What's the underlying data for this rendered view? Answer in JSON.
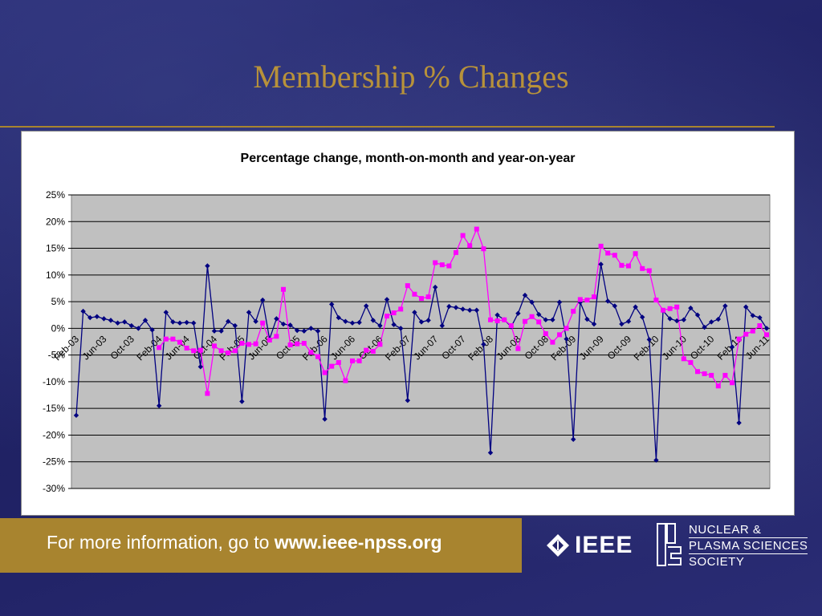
{
  "slide": {
    "title": "Membership % Changes"
  },
  "footer": {
    "text_prefix": "For more information, go to ",
    "url": "www.ieee-npss.org",
    "ieee_logo": "IEEE",
    "npss_lines": [
      "NUCLEAR &",
      "PLASMA SCIENCES",
      "SOCIETY"
    ]
  },
  "colors": {
    "title": "#b8923a",
    "accent_band": "#a8842f",
    "plot_area": "#c0c0c0",
    "mom_series": "#000080",
    "yoy_series": "#ff00ff"
  },
  "chart_data": {
    "type": "line",
    "title": "Percentage change, month-on-month and year-on-year",
    "xlabel": "",
    "ylabel": "",
    "ylim": [
      -30,
      25
    ],
    "y_ticks": [
      25,
      20,
      15,
      10,
      5,
      0,
      -5,
      -10,
      -15,
      -20,
      -25,
      -30
    ],
    "y_tick_labels": [
      "25%",
      "20%",
      "15%",
      "10%",
      "5%",
      "0%",
      "-5%",
      "-10%",
      "-15%",
      "-20%",
      "-25%",
      "-30%"
    ],
    "grid": true,
    "legend": "none",
    "x_start": "Feb-03",
    "x_tick_labels": [
      "Feb-03",
      "Jun-03",
      "Oct-03",
      "Feb-04",
      "Jun-04",
      "Oct-04",
      "Feb-05",
      "Jun-05",
      "Oct-05",
      "Feb-06",
      "Jun-06",
      "Oct-06",
      "Feb-07",
      "Jun-07",
      "Oct-07",
      "Feb-08",
      "Jun-08",
      "Oct-08",
      "Feb-09",
      "Jun-09",
      "Oct-09",
      "Feb-10",
      "Jun-10",
      "Oct-10",
      "Feb-11",
      "Jun-11"
    ],
    "series": [
      {
        "values": [
          -16.3,
          3.2,
          2,
          2.2,
          1.8,
          1.5,
          1.0,
          1.2,
          0.5,
          0,
          1.5,
          -0.3,
          -14.5,
          3,
          1.2,
          1,
          1.1,
          1,
          -7.2,
          11.7,
          -0.5,
          -0.5,
          1.3,
          0.5,
          -13.7,
          3,
          1.3,
          5.3,
          -2,
          1.8,
          0.8,
          0.6,
          -0.4,
          -0.5,
          0,
          -0.5,
          -17,
          4.5,
          2,
          1.3,
          1,
          1.1,
          4.2,
          1.5,
          0.5,
          5.4,
          0.7,
          0,
          -13.5,
          3,
          1.2,
          1.5,
          7.7,
          0.5,
          4.1,
          3.9,
          3.6,
          3.4,
          3.4,
          -3,
          -23.3,
          2.5,
          1.6,
          0.3,
          2.8,
          6.2,
          4.9,
          2.6,
          1.6,
          1.6,
          4.9,
          -2,
          -20.8,
          4.9,
          1.7,
          0.8,
          12,
          5.1,
          4.2,
          0.8,
          1.3,
          4,
          2.1,
          -2.1,
          -24.7,
          3.3,
          1.8,
          1.4,
          1.6,
          3.8,
          2.5,
          0.2,
          1.2,
          1.7,
          4.2,
          -3.5,
          -17.7,
          4,
          2.4,
          2,
          0
        ]
      },
      {
        "offset": 12,
        "values": [
          -3.6,
          -2,
          -2,
          -2.6,
          -3.7,
          -4.2,
          -4.1,
          -12.2,
          -3.3,
          -4.2,
          -4.6,
          -4.2,
          -2.8,
          -3,
          -2.9,
          1,
          -2.2,
          -1.5,
          7.3,
          -3.1,
          -2.9,
          -2.8,
          -4.5,
          -5.3,
          -8.3,
          -7.1,
          -6.4,
          -9.8,
          -6.1,
          -6.1,
          -4.1,
          -4.3,
          -3,
          2.3,
          2.9,
          3.6,
          8,
          6.4,
          5.6,
          5.9,
          12.3,
          11.9,
          11.7,
          14.2,
          17.4,
          15.5,
          18.6,
          14.9,
          1.6,
          1.4,
          1.6,
          0.5,
          -3.8,
          1.3,
          2.2,
          1.2,
          -1,
          -2.6,
          -1.2,
          0,
          3.2,
          5.4,
          5.3,
          5.9,
          15.4,
          14.1,
          13.7,
          11.8,
          11.7,
          14,
          11.2,
          10.8,
          5.3,
          3.4,
          3.7,
          4,
          -5.7,
          -6.4,
          -8.1,
          -8.5,
          -8.8,
          -10.8,
          -8.8,
          -10.2,
          -2,
          -1.1,
          -0.5,
          0.5,
          -1.2
        ]
      }
    ]
  }
}
